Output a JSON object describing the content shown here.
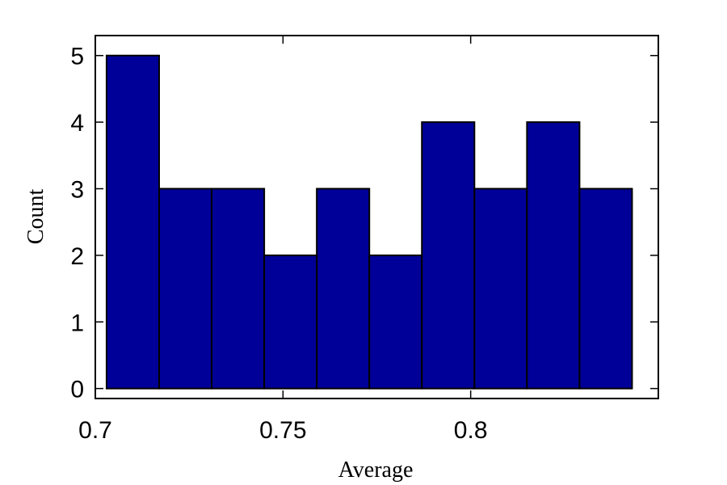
{
  "chart_data": {
    "type": "bar",
    "title": "",
    "xlabel": "Average",
    "ylabel": "Count",
    "bins": [
      {
        "start": 0.703,
        "end": 0.717,
        "count": 5
      },
      {
        "start": 0.717,
        "end": 0.731,
        "count": 3
      },
      {
        "start": 0.731,
        "end": 0.745,
        "count": 3
      },
      {
        "start": 0.745,
        "end": 0.759,
        "count": 2
      },
      {
        "start": 0.759,
        "end": 0.773,
        "count": 3
      },
      {
        "start": 0.773,
        "end": 0.787,
        "count": 2
      },
      {
        "start": 0.787,
        "end": 0.801,
        "count": 4
      },
      {
        "start": 0.801,
        "end": 0.815,
        "count": 3
      },
      {
        "start": 0.815,
        "end": 0.829,
        "count": 4
      },
      {
        "start": 0.829,
        "end": 0.843,
        "count": 3
      }
    ],
    "xlim": [
      0.7,
      0.85
    ],
    "ylim": [
      -0.15,
      5.3
    ],
    "xticks": [
      0.7,
      0.75,
      0.8
    ],
    "xtick_labels": [
      "0.7",
      "0.75",
      "0.8"
    ],
    "yticks": [
      0,
      1,
      2,
      3,
      4,
      5
    ],
    "ytick_labels": [
      "0",
      "1",
      "2",
      "3",
      "4",
      "5"
    ],
    "bar_color": "#000099",
    "edge_color": "#000000",
    "grid": false
  }
}
